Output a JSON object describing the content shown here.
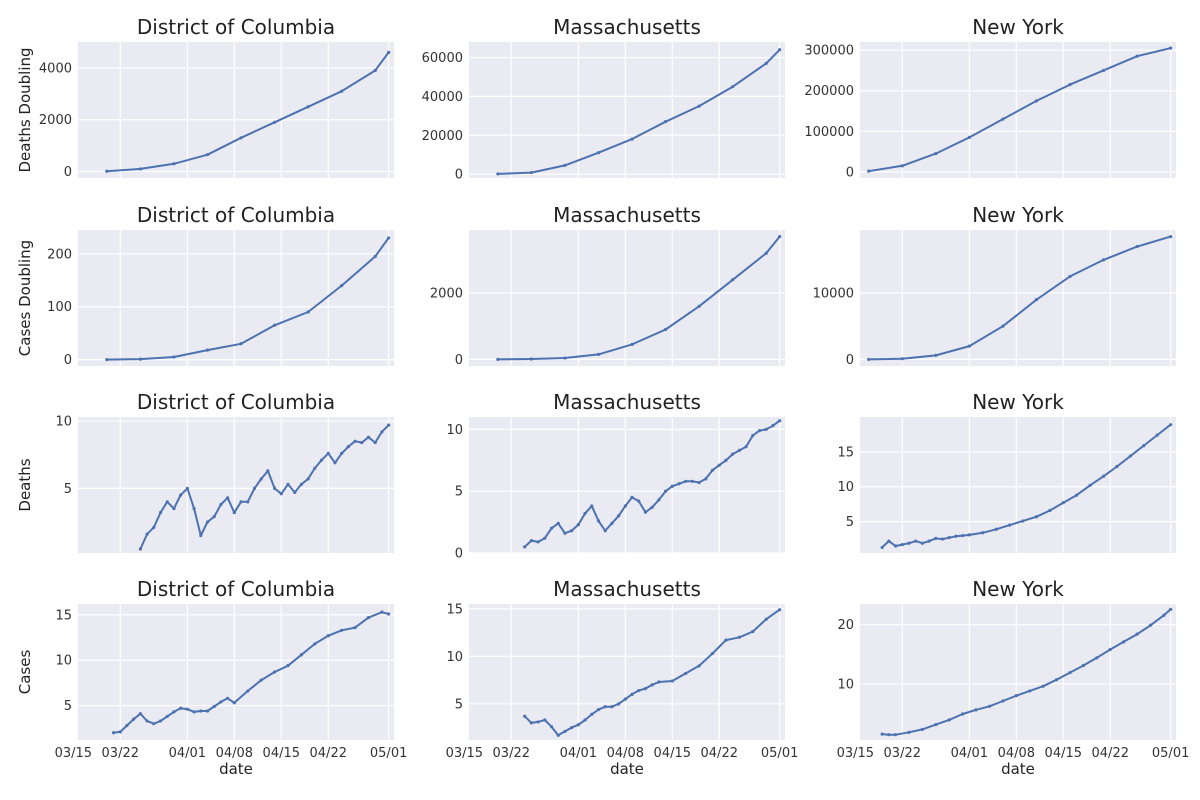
{
  "colors": {
    "line": "#4C72B0",
    "axes_bg": "#EAEAF2",
    "grid": "#ffffff"
  },
  "x_ticks": [
    "03/15",
    "03/22",
    "04/01",
    "04/08",
    "04/15",
    "04/22",
    "05/01"
  ],
  "x_label": "date",
  "chart_data": [
    {
      "type": "line",
      "title": "District of Columbia",
      "ylabel": "Deaths Doubling",
      "yticks": [
        0,
        2000,
        4000
      ],
      "ylim": [
        -250,
        5000
      ],
      "x_start": "2020-03-20",
      "x_end": "2020-05-01",
      "series": [
        {
          "x_dates": [
            "03/20",
            "03/25",
            "03/30",
            "04/04",
            "04/09",
            "04/14",
            "04/19",
            "04/24",
            "04/29",
            "05/01"
          ],
          "values": [
            10,
            100,
            300,
            650,
            1300,
            1900,
            2500,
            3100,
            3900,
            4600
          ]
        }
      ]
    },
    {
      "type": "line",
      "title": "Massachusetts",
      "ylabel": "",
      "yticks": [
        0,
        20000,
        40000,
        60000
      ],
      "ylim": [
        -2000,
        68000
      ],
      "x_start": "2020-03-20",
      "x_end": "2020-05-01",
      "series": [
        {
          "x_dates": [
            "03/20",
            "03/25",
            "03/30",
            "04/04",
            "04/09",
            "04/14",
            "04/19",
            "04/24",
            "04/29",
            "05/01"
          ],
          "values": [
            100,
            800,
            4500,
            11000,
            18000,
            27000,
            35000,
            45000,
            57000,
            64000
          ]
        }
      ]
    },
    {
      "type": "line",
      "title": "New York",
      "ylabel": "",
      "yticks": [
        0,
        100000,
        200000,
        300000
      ],
      "ylim": [
        -15000,
        320000
      ],
      "x_start": "2020-03-17",
      "x_end": "2020-05-01",
      "series": [
        {
          "x_dates": [
            "03/17",
            "03/22",
            "03/27",
            "04/01",
            "04/06",
            "04/11",
            "04/16",
            "04/21",
            "04/26",
            "05/01"
          ],
          "values": [
            2000,
            15000,
            45000,
            85000,
            130000,
            175000,
            215000,
            250000,
            285000,
            305000
          ]
        }
      ]
    },
    {
      "type": "line",
      "title": "District of Columbia",
      "ylabel": "Cases Doubling",
      "yticks": [
        0,
        100,
        200
      ],
      "ylim": [
        -12,
        245
      ],
      "x_start": "2020-03-20",
      "x_end": "2020-05-01",
      "series": [
        {
          "x_dates": [
            "03/20",
            "03/25",
            "03/30",
            "04/04",
            "04/09",
            "04/14",
            "04/19",
            "04/24",
            "04/29",
            "05/01"
          ],
          "values": [
            0,
            1,
            5,
            18,
            30,
            65,
            90,
            140,
            195,
            230
          ]
        }
      ]
    },
    {
      "type": "line",
      "title": "Massachusetts",
      "ylabel": "",
      "yticks": [
        0,
        2000
      ],
      "ylim": [
        -200,
        3900
      ],
      "x_start": "2020-03-20",
      "x_end": "2020-05-01",
      "series": [
        {
          "x_dates": [
            "03/20",
            "03/25",
            "03/30",
            "04/04",
            "04/09",
            "04/14",
            "04/19",
            "04/24",
            "04/29",
            "05/01"
          ],
          "values": [
            0,
            10,
            40,
            150,
            450,
            900,
            1600,
            2400,
            3200,
            3700
          ]
        }
      ]
    },
    {
      "type": "line",
      "title": "New York",
      "ylabel": "",
      "yticks": [
        0,
        10000
      ],
      "ylim": [
        -1000,
        19500
      ],
      "x_start": "2020-03-17",
      "x_end": "2020-05-01",
      "series": [
        {
          "x_dates": [
            "03/17",
            "03/22",
            "03/27",
            "04/01",
            "04/06",
            "04/11",
            "04/16",
            "04/21",
            "04/26",
            "05/01"
          ],
          "values": [
            0,
            100,
            600,
            2000,
            5000,
            9000,
            12500,
            15000,
            17000,
            18500
          ]
        }
      ]
    },
    {
      "type": "line",
      "title": "District of Columbia",
      "ylabel": "Deaths",
      "yticks": [
        5,
        10
      ],
      "ylim": [
        0.2,
        10.3
      ],
      "x_start": "2020-03-20",
      "x_end": "2020-05-01",
      "series": [
        {
          "x_dates": [
            "03/25",
            "03/26",
            "03/27",
            "03/28",
            "03/29",
            "03/30",
            "03/31",
            "04/01",
            "04/02",
            "04/03",
            "04/04",
            "04/05",
            "04/06",
            "04/07",
            "04/08",
            "04/09",
            "04/10",
            "04/11",
            "04/12",
            "04/13",
            "04/14",
            "04/15",
            "04/16",
            "04/17",
            "04/18",
            "04/19",
            "04/20",
            "04/21",
            "04/22",
            "04/23",
            "04/24",
            "04/25",
            "04/26",
            "04/27",
            "04/28",
            "04/29",
            "04/30",
            "05/01"
          ],
          "values": [
            0.5,
            1.6,
            2.1,
            3.2,
            4.0,
            3.5,
            4.5,
            5.0,
            3.5,
            1.5,
            2.5,
            2.9,
            3.8,
            4.3,
            3.2,
            4.0,
            4.0,
            5.0,
            5.7,
            6.3,
            5.0,
            4.6,
            5.3,
            4.7,
            5.3,
            5.7,
            6.5,
            7.1,
            7.6,
            6.9,
            7.6,
            8.1,
            8.5,
            8.4,
            8.8,
            8.4,
            9.2,
            9.7
          ]
        }
      ]
    },
    {
      "type": "line",
      "title": "Massachusetts",
      "ylabel": "",
      "yticks": [
        0,
        5,
        10
      ],
      "ylim": [
        0,
        11
      ],
      "x_start": "2020-03-20",
      "x_end": "2020-05-01",
      "series": [
        {
          "x_dates": [
            "03/24",
            "03/25",
            "03/26",
            "03/27",
            "03/28",
            "03/29",
            "03/30",
            "03/31",
            "04/01",
            "04/02",
            "04/03",
            "04/04",
            "04/05",
            "04/06",
            "04/07",
            "04/08",
            "04/09",
            "04/10",
            "04/11",
            "04/12",
            "04/13",
            "04/14",
            "04/15",
            "04/16",
            "04/17",
            "04/18",
            "04/19",
            "04/20",
            "04/21",
            "04/22",
            "04/23",
            "04/24",
            "04/25",
            "04/26",
            "04/27",
            "04/28",
            "04/29",
            "04/30",
            "05/01"
          ],
          "values": [
            0.5,
            1.0,
            0.9,
            1.2,
            2.0,
            2.4,
            1.6,
            1.8,
            2.3,
            3.2,
            3.8,
            2.6,
            1.8,
            2.4,
            3.0,
            3.8,
            4.5,
            4.2,
            3.3,
            3.7,
            4.3,
            5.0,
            5.4,
            5.6,
            5.8,
            5.8,
            5.7,
            6.0,
            6.7,
            7.1,
            7.5,
            8.0,
            8.3,
            8.6,
            9.5,
            9.9,
            10.0,
            10.3,
            10.7
          ]
        }
      ]
    },
    {
      "type": "line",
      "title": "New York",
      "ylabel": "",
      "yticks": [
        5,
        10,
        15
      ],
      "ylim": [
        0.5,
        20
      ],
      "x_start": "2020-03-17",
      "x_end": "2020-05-01",
      "series": [
        {
          "x_dates": [
            "03/19",
            "03/20",
            "03/21",
            "03/22",
            "03/23",
            "03/24",
            "03/25",
            "03/26",
            "03/27",
            "03/28",
            "03/29",
            "03/30",
            "03/31",
            "04/01",
            "04/03",
            "04/05",
            "04/07",
            "04/09",
            "04/11",
            "04/13",
            "04/15",
            "04/17",
            "04/19",
            "04/21",
            "04/23",
            "04/25",
            "04/27",
            "04/29",
            "05/01"
          ],
          "values": [
            1.3,
            2.2,
            1.5,
            1.7,
            1.9,
            2.2,
            1.9,
            2.2,
            2.6,
            2.5,
            2.7,
            2.9,
            3.0,
            3.1,
            3.4,
            3.9,
            4.5,
            5.1,
            5.7,
            6.6,
            7.7,
            8.8,
            10.2,
            11.5,
            12.9,
            14.4,
            15.9,
            17.4,
            18.9
          ]
        }
      ]
    },
    {
      "type": "line",
      "title": "District of Columbia",
      "ylabel": "Cases",
      "yticks": [
        5,
        10,
        15
      ],
      "ylim": [
        1.2,
        16.2
      ],
      "x_start": "2020-03-20",
      "x_end": "2020-05-01",
      "series": [
        {
          "x_dates": [
            "03/21",
            "03/22",
            "03/23",
            "03/24",
            "03/25",
            "03/26",
            "03/27",
            "03/28",
            "03/29",
            "03/30",
            "03/31",
            "04/01",
            "04/02",
            "04/03",
            "04/04",
            "04/05",
            "04/06",
            "04/07",
            "04/08",
            "04/10",
            "04/12",
            "04/14",
            "04/16",
            "04/18",
            "04/20",
            "04/22",
            "04/24",
            "04/26",
            "04/28",
            "04/30",
            "05/01"
          ],
          "values": [
            2.0,
            2.1,
            2.8,
            3.5,
            4.1,
            3.3,
            3.0,
            3.3,
            3.8,
            4.3,
            4.7,
            4.6,
            4.3,
            4.4,
            4.4,
            4.9,
            5.4,
            5.8,
            5.3,
            6.6,
            7.8,
            8.7,
            9.4,
            10.6,
            11.8,
            12.7,
            13.3,
            13.6,
            14.7,
            15.3,
            15.1
          ]
        }
      ]
    },
    {
      "type": "line",
      "title": "Massachusetts",
      "ylabel": "",
      "yticks": [
        5,
        10,
        15
      ],
      "ylim": [
        1.2,
        15.5
      ],
      "x_start": "2020-03-20",
      "x_end": "2020-05-01",
      "series": [
        {
          "x_dates": [
            "03/24",
            "03/25",
            "03/26",
            "03/27",
            "03/28",
            "03/29",
            "03/30",
            "03/31",
            "04/01",
            "04/02",
            "04/03",
            "04/04",
            "04/05",
            "04/06",
            "04/07",
            "04/08",
            "04/09",
            "04/10",
            "04/11",
            "04/12",
            "04/13",
            "04/15",
            "04/17",
            "04/19",
            "04/21",
            "04/23",
            "04/25",
            "04/27",
            "04/29",
            "05/01"
          ],
          "values": [
            3.7,
            3.0,
            3.1,
            3.3,
            2.6,
            1.7,
            2.1,
            2.5,
            2.8,
            3.3,
            3.9,
            4.4,
            4.7,
            4.7,
            5.0,
            5.5,
            6.0,
            6.4,
            6.6,
            7.0,
            7.3,
            7.4,
            8.2,
            9.0,
            10.3,
            11.7,
            12.0,
            12.6,
            13.9,
            14.9
          ]
        }
      ]
    },
    {
      "type": "line",
      "title": "New York",
      "ylabel": "",
      "yticks": [
        10,
        20
      ],
      "ylim": [
        0.5,
        23.5
      ],
      "x_start": "2020-03-17",
      "x_end": "2020-05-01",
      "series": [
        {
          "x_dates": [
            "03/19",
            "03/20",
            "03/21",
            "03/23",
            "03/25",
            "03/27",
            "03/29",
            "03/31",
            "04/02",
            "04/04",
            "04/06",
            "04/08",
            "04/10",
            "04/12",
            "04/14",
            "04/16",
            "04/18",
            "04/20",
            "04/22",
            "04/24",
            "04/26",
            "04/28",
            "04/30",
            "05/01"
          ],
          "values": [
            1.5,
            1.4,
            1.4,
            1.8,
            2.3,
            3.1,
            3.9,
            4.9,
            5.6,
            6.2,
            7.1,
            8.0,
            8.8,
            9.6,
            10.7,
            11.9,
            13.1,
            14.4,
            15.8,
            17.1,
            18.4,
            19.9,
            21.6,
            22.6
          ]
        }
      ]
    }
  ]
}
